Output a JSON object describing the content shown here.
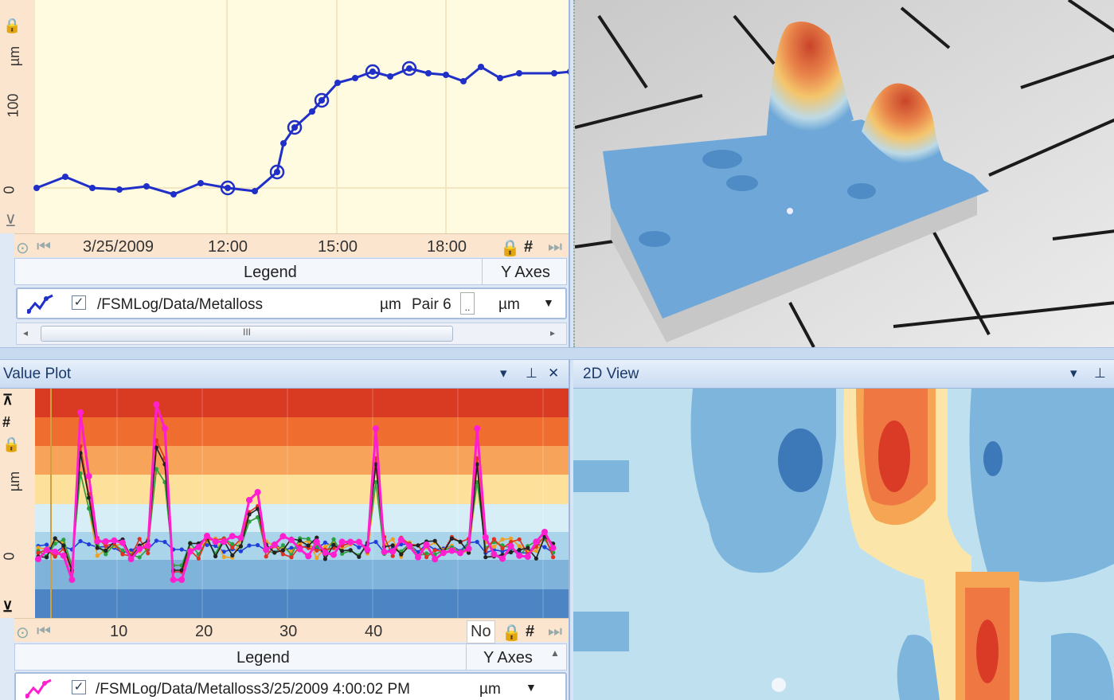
{
  "top_plot": {
    "side_label_unit": "µm",
    "side_label_value": "100",
    "zero_label": "0",
    "x_labels": [
      "3/25/2009",
      "12:00",
      "15:00",
      "18:00"
    ],
    "legend_header": "Legend",
    "yaxes_header": "Y Axes",
    "legend_item": {
      "path": "/FSMLog/Data/Metalloss",
      "unit": "µm",
      "pair": "Pair 6",
      "axis_select": "µm",
      "ellipsis": "..",
      "checked": "✓"
    },
    "scroll_thumb": "III",
    "colors": {
      "bg": "#fefbe0",
      "line": "#1f2fc8",
      "axis_bg": "#fbe5cf"
    }
  },
  "value_plot": {
    "title": "Value Plot",
    "side_label_unit": "µm",
    "zero_label": "0",
    "x_labels": [
      "10",
      "20",
      "30",
      "40"
    ],
    "no_label": "No",
    "legend_header": "Legend",
    "yaxes_header": "Y Axes",
    "legend_item": {
      "path": "/FSMLog/Data/Metalloss3/25/2009 4:00:02 PM",
      "unit": "µm",
      "checked": "✓"
    },
    "pin_glyph": "ᚴ",
    "close_glyph": "✕",
    "dropdown_glyph": "▾",
    "bands": [
      "#d93a22",
      "#ee6d2f",
      "#f7a35a",
      "#fde09a",
      "#d8eef6",
      "#a9d4ea",
      "#7fb3da",
      "#4d84c4"
    ]
  },
  "view2d": {
    "title": "2D View",
    "dropdown_glyph": "▾",
    "pin_glyph": "ᚴ"
  },
  "view3d": {
    "floor": "#dcdcdc",
    "surface": "#6fa8d8"
  }
}
